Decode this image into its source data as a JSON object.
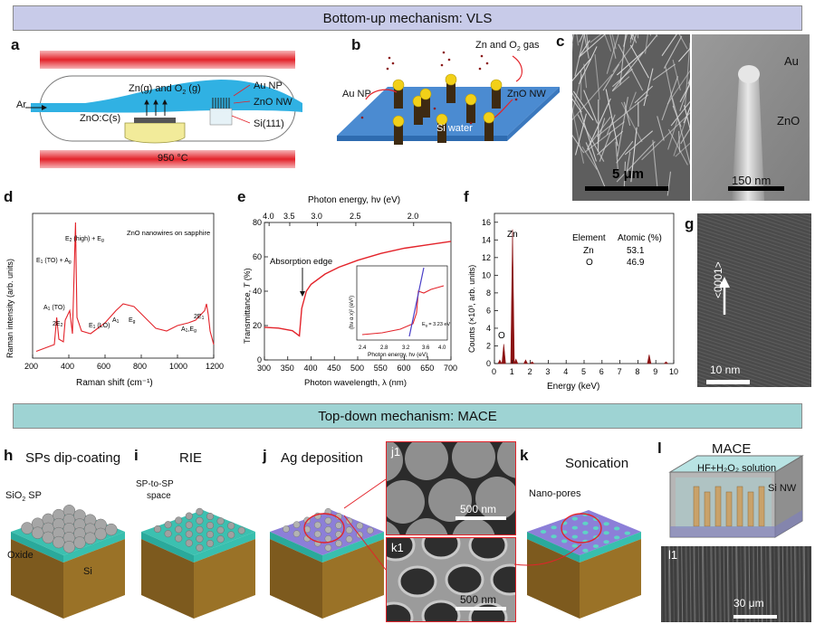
{
  "banners": {
    "top": "Bottom-up mechanism: VLS",
    "bottom": "Top-down mechanism: MACE"
  },
  "panel_labels": {
    "a": "a",
    "b": "b",
    "c": "c",
    "d": "d",
    "e": "e",
    "f": "f",
    "g": "g",
    "h": "h",
    "i": "i",
    "j": "j",
    "k": "k",
    "l": "l"
  },
  "panel_a": {
    "ar": "Ar",
    "gas": "Zn(g) and O",
    "gas_sub": "2",
    "gas_end": " (g)",
    "au_np": "Au NP",
    "zno_nw": "ZnO NW",
    "source": "ZnO:C(s)",
    "si": "Si(111)",
    "temp": "950 °C"
  },
  "panel_b": {
    "gas": "Zn and O",
    "gas_sub": "2",
    "gas_end": " gas",
    "au_np": "Au NP",
    "zno_nw": "ZnO NW",
    "wafer": "Si water"
  },
  "panel_c": {
    "scale_left": "5 μm",
    "au": "Au",
    "zno": "ZnO",
    "scale_right": "150 nm"
  },
  "panel_d": {
    "note": "ZnO nanowires on sapphire",
    "ylabel": "Raman intensity (arb. units)",
    "xlabel": "Raman shift (cm⁻¹)",
    "peaks": [
      "E2 (high) + Eg",
      "E1 (TO) + Ag",
      "A1 (TO)",
      "2E2",
      "E1 (LO)",
      "A1",
      "Eg",
      "A1,Eg",
      "2E1"
    ],
    "xticks": [
      "200",
      "400",
      "600",
      "800",
      "1000",
      "1200"
    ]
  },
  "panel_e": {
    "top_axis": "Photon energy, hν (eV)",
    "top_ticks": [
      "4.0",
      "3.5",
      "3.0",
      "2.5",
      "2.0"
    ],
    "ylabel": "Transmittance, T (%)",
    "xlabel": "Photon wavelength, λ (nm)",
    "xticks": [
      "300",
      "350",
      "400",
      "450",
      "500",
      "550",
      "600",
      "650",
      "700"
    ],
    "yticks": [
      "0",
      "20",
      "40",
      "60",
      "80"
    ],
    "edge": "Absorption edge",
    "inset_ylabel": "(hν α x)² (eV²)",
    "inset_xlabel": "Photon energy, hν (eV)",
    "inset_xticks": [
      "2.4",
      "2.8",
      "3.2",
      "3.6",
      "4.0"
    ],
    "inset_eg": "Eg = 3.23 eV"
  },
  "panel_f": {
    "ylabel": "Counts (×10³, arb. units)",
    "xlabel": "Energy (keV)",
    "yticks": [
      "0",
      "2",
      "4",
      "6",
      "8",
      "10",
      "12",
      "14",
      "16"
    ],
    "xticks": [
      "0",
      "1",
      "2",
      "3",
      "4",
      "5",
      "6",
      "7",
      "8",
      "9",
      "10"
    ],
    "zn": "Zn",
    "o": "O",
    "table_header": [
      "Element",
      "Atomic (%)"
    ],
    "table_rows": [
      [
        "Zn",
        "53.1"
      ],
      [
        "O",
        "46.9"
      ]
    ]
  },
  "panel_g": {
    "direction": "<0001>",
    "scale": "10 nm"
  },
  "panel_h": {
    "title": "SPs dip-coating",
    "sp": "SiO",
    "sp_sub": "2",
    "sp_end": " SP",
    "oxide": "Oxide",
    "si": "Si"
  },
  "panel_i": {
    "title": "RIE",
    "space1": "SP-to-SP",
    "space2": "space"
  },
  "panel_j": {
    "title": "Ag deposition",
    "j1": "j1",
    "k1": "k1",
    "scale_j1": "500 nm",
    "scale_k1": "500 nm"
  },
  "panel_k": {
    "title": "Sonication",
    "pores": "Nano-pores"
  },
  "panel_l": {
    "title": "MACE",
    "solution": "HF+H₂O₂ solution",
    "si_nw": "Si NW",
    "l1": "l1",
    "scale": "30 μm"
  },
  "chart_data": [
    {
      "type": "line",
      "title": "",
      "xlabel": "Raman shift (cm⁻¹)",
      "ylabel": "Raman intensity (arb. units)",
      "xlim": [
        200,
        1200
      ],
      "series": [
        {
          "x": [
            220,
            280,
            320,
            333,
            345,
            370,
            380,
            405,
            420,
            437,
            445,
            470,
            520,
            560,
            600,
            660,
            700,
            760,
            820,
            880,
            940,
            1000,
            1060,
            1100,
            1150,
            1160,
            1170,
            1180,
            1200
          ],
          "y": [
            5,
            8,
            10,
            30,
            14,
            12,
            28,
            35,
            18,
            100,
            30,
            20,
            18,
            22,
            26,
            35,
            40,
            38,
            30,
            22,
            20,
            24,
            26,
            28,
            35,
            40,
            32,
            20,
            10
          ]
        }
      ]
    },
    {
      "type": "line",
      "title": "",
      "xlabel": "Photon wavelength, λ (nm)",
      "ylabel": "Transmittance, T (%)",
      "xlim": [
        300,
        700
      ],
      "ylim": [
        0,
        80
      ],
      "series": [
        {
          "x": [
            300,
            330,
            360,
            375,
            380,
            390,
            400,
            430,
            460,
            500,
            550,
            600,
            650,
            700
          ],
          "y": [
            19,
            18.5,
            17,
            14,
            30,
            40,
            44,
            50,
            54,
            58,
            62,
            65,
            67,
            69
          ]
        }
      ]
    },
    {
      "type": "bar",
      "title": "",
      "xlabel": "Energy (keV)",
      "ylabel": "Counts (×10³, arb. units)",
      "xlim": [
        0,
        10
      ],
      "ylim": [
        0,
        17
      ],
      "series": [
        {
          "x": [
            0.3,
            0.52,
            1.01,
            1.2,
            1.74,
            2.1,
            8.63,
            9.57
          ],
          "y": [
            0.4,
            2.2,
            15.2,
            0.5,
            0.4,
            0.2,
            1.0,
            0.2
          ]
        }
      ]
    }
  ]
}
